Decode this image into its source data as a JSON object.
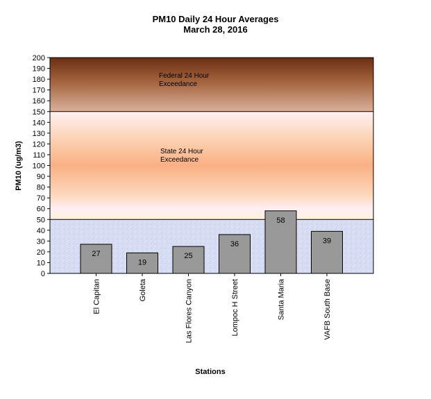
{
  "chart_data": {
    "type": "bar",
    "title": "PM10 Daily 24 Hour Averages",
    "subtitle": "March 28, 2016",
    "xlabel": "Stations",
    "ylabel": "PM10 (ug/m3)",
    "ylim": [
      0,
      200
    ],
    "ytick_step": 10,
    "grid": false,
    "legend": "none",
    "categories": [
      "El Capitan",
      "Goleta",
      "Las Flores Canyon",
      "Lompoc H Street",
      "Santa Maria",
      "VAFB South Base"
    ],
    "values": [
      27,
      19,
      25,
      36,
      58,
      39
    ],
    "data_labels": [
      "27",
      "19",
      "25",
      "36",
      "58",
      "39"
    ],
    "bar_color": "#999999",
    "bands": [
      {
        "label_lines": [
          "Federal 24 Hour",
          "Exceedance"
        ],
        "from": 150,
        "to": 200,
        "color_top": "#6b2e12",
        "color_bottom": "#d9b09a"
      },
      {
        "label_lines": [
          "State 24 Hour",
          "Exceedance"
        ],
        "from": 50,
        "to": 150,
        "color_top": "#fff0f2",
        "color_mid": "#f9b083",
        "color_bottom": "#fff3dc"
      },
      {
        "from": 0,
        "to": 50,
        "color": "#d6dcf2"
      }
    ]
  }
}
